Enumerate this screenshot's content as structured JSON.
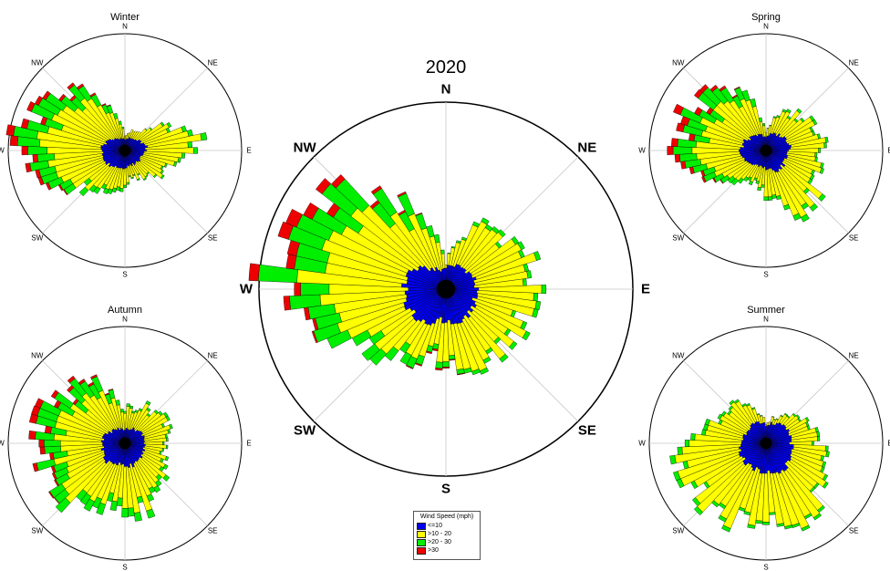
{
  "colors": {
    "calm": "#0000ee",
    "mid": "#ffff00",
    "high": "#00ee00",
    "extreme": "#ee0000",
    "outline": "#000000",
    "grid": "#c8c8c8"
  },
  "legend": {
    "title": "Wind Speed (mph)",
    "items": [
      {
        "label": "<=10",
        "color": "#0000ee"
      },
      {
        "label": ">10 - 20",
        "color": "#ffff00"
      },
      {
        "label": ">20 - 30",
        "color": "#00ee00"
      },
      {
        "label": ">30",
        "color": "#ee0000"
      }
    ]
  },
  "chart_data": [
    {
      "type": "windrose",
      "title": "2020",
      "directions": [
        "N",
        "NE",
        "E",
        "SE",
        "S",
        "SW",
        "W",
        "NW"
      ],
      "bin_labels": [
        "<=10",
        ">10 - 20",
        ">20 - 30",
        ">30"
      ],
      "rmax": 100,
      "petal_count": 72,
      "profile": [
        {
          "angle": 0,
          "calm": 12,
          "mid": 2,
          "high": 0,
          "extreme": 0
        },
        {
          "angle": 30,
          "calm": 14,
          "mid": 24,
          "high": 2,
          "extreme": 0
        },
        {
          "angle": 70,
          "calm": 16,
          "mid": 30,
          "high": 2,
          "extreme": 0
        },
        {
          "angle": 100,
          "calm": 16,
          "mid": 28,
          "high": 2,
          "extreme": 0
        },
        {
          "angle": 140,
          "calm": 18,
          "mid": 24,
          "high": 2,
          "extreme": 0
        },
        {
          "angle": 160,
          "calm": 20,
          "mid": 28,
          "high": 2,
          "extreme": 0
        },
        {
          "angle": 190,
          "calm": 16,
          "mid": 16,
          "high": 3,
          "extreme": 1
        },
        {
          "angle": 215,
          "calm": 22,
          "mid": 18,
          "high": 6,
          "extreme": 0
        },
        {
          "angle": 245,
          "calm": 22,
          "mid": 28,
          "high": 10,
          "extreme": 0
        },
        {
          "angle": 270,
          "calm": 22,
          "mid": 50,
          "high": 18,
          "extreme": 4
        },
        {
          "angle": 295,
          "calm": 22,
          "mid": 44,
          "high": 18,
          "extreme": 6
        },
        {
          "angle": 320,
          "calm": 14,
          "mid": 36,
          "high": 16,
          "extreme": 2
        },
        {
          "angle": 345,
          "calm": 10,
          "mid": 20,
          "high": 6,
          "extreme": 0
        }
      ]
    },
    {
      "type": "windrose",
      "title": "Winter",
      "directions": [
        "N",
        "NE",
        "E",
        "SE",
        "S",
        "SW",
        "W",
        "NW"
      ],
      "bin_labels": [
        "<=10",
        ">10 - 20",
        ">20 - 30",
        ">30"
      ],
      "rmax": 100,
      "petal_count": 72,
      "profile": [
        {
          "angle": 0,
          "calm": 10,
          "mid": 4,
          "high": 0,
          "extreme": 0
        },
        {
          "angle": 40,
          "calm": 12,
          "mid": 8,
          "high": 0,
          "extreme": 0
        },
        {
          "angle": 80,
          "calm": 18,
          "mid": 40,
          "high": 4,
          "extreme": 0
        },
        {
          "angle": 100,
          "calm": 16,
          "mid": 30,
          "high": 2,
          "extreme": 0
        },
        {
          "angle": 140,
          "calm": 14,
          "mid": 14,
          "high": 1,
          "extreme": 0
        },
        {
          "angle": 170,
          "calm": 14,
          "mid": 10,
          "high": 1,
          "extreme": 0
        },
        {
          "angle": 200,
          "calm": 16,
          "mid": 20,
          "high": 4,
          "extreme": 0
        },
        {
          "angle": 230,
          "calm": 18,
          "mid": 24,
          "high": 6,
          "extreme": 0
        },
        {
          "angle": 260,
          "calm": 20,
          "mid": 48,
          "high": 16,
          "extreme": 4
        },
        {
          "angle": 275,
          "calm": 20,
          "mid": 50,
          "high": 18,
          "extreme": 6
        },
        {
          "angle": 300,
          "calm": 16,
          "mid": 42,
          "high": 16,
          "extreme": 3
        },
        {
          "angle": 325,
          "calm": 12,
          "mid": 38,
          "high": 12,
          "extreme": 2
        },
        {
          "angle": 345,
          "calm": 10,
          "mid": 16,
          "high": 4,
          "extreme": 0
        }
      ]
    },
    {
      "type": "windrose",
      "title": "Spring",
      "directions": [
        "N",
        "NE",
        "E",
        "SE",
        "S",
        "SW",
        "W",
        "NW"
      ],
      "bin_labels": [
        "<=10",
        ">10 - 20",
        ">20 - 30",
        ">30"
      ],
      "rmax": 100,
      "petal_count": 72,
      "profile": [
        {
          "angle": 0,
          "calm": 12,
          "mid": 4,
          "high": 0,
          "extreme": 0
        },
        {
          "angle": 30,
          "calm": 16,
          "mid": 20,
          "high": 2,
          "extreme": 0
        },
        {
          "angle": 80,
          "calm": 22,
          "mid": 30,
          "high": 2,
          "extreme": 0
        },
        {
          "angle": 110,
          "calm": 18,
          "mid": 28,
          "high": 2,
          "extreme": 0
        },
        {
          "angle": 150,
          "calm": 20,
          "mid": 40,
          "high": 4,
          "extreme": 0
        },
        {
          "angle": 170,
          "calm": 16,
          "mid": 24,
          "high": 3,
          "extreme": 0
        },
        {
          "angle": 200,
          "calm": 14,
          "mid": 12,
          "high": 2,
          "extreme": 0
        },
        {
          "angle": 230,
          "calm": 18,
          "mid": 20,
          "high": 6,
          "extreme": 0
        },
        {
          "angle": 265,
          "calm": 22,
          "mid": 36,
          "high": 14,
          "extreme": 4
        },
        {
          "angle": 290,
          "calm": 20,
          "mid": 34,
          "high": 16,
          "extreme": 6
        },
        {
          "angle": 315,
          "calm": 16,
          "mid": 34,
          "high": 14,
          "extreme": 3
        },
        {
          "angle": 340,
          "calm": 14,
          "mid": 28,
          "high": 8,
          "extreme": 0
        }
      ]
    },
    {
      "type": "windrose",
      "title": "Autumn",
      "directions": [
        "N",
        "NE",
        "E",
        "SE",
        "S",
        "SW",
        "W",
        "NW"
      ],
      "bin_labels": [
        "<=10",
        ">10 - 20",
        ">20 - 30",
        ">30"
      ],
      "rmax": 100,
      "petal_count": 72,
      "profile": [
        {
          "angle": 0,
          "calm": 12,
          "mid": 16,
          "high": 2,
          "extreme": 0
        },
        {
          "angle": 30,
          "calm": 14,
          "mid": 20,
          "high": 2,
          "extreme": 0
        },
        {
          "angle": 70,
          "calm": 18,
          "mid": 24,
          "high": 2,
          "extreme": 0
        },
        {
          "angle": 100,
          "calm": 16,
          "mid": 14,
          "high": 1,
          "extreme": 0
        },
        {
          "angle": 140,
          "calm": 18,
          "mid": 24,
          "high": 4,
          "extreme": 0
        },
        {
          "angle": 165,
          "calm": 20,
          "mid": 36,
          "high": 6,
          "extreme": 0
        },
        {
          "angle": 195,
          "calm": 18,
          "mid": 30,
          "high": 8,
          "extreme": 0
        },
        {
          "angle": 225,
          "calm": 22,
          "mid": 40,
          "high": 10,
          "extreme": 0
        },
        {
          "angle": 255,
          "calm": 20,
          "mid": 38,
          "high": 14,
          "extreme": 3
        },
        {
          "angle": 280,
          "calm": 20,
          "mid": 40,
          "high": 16,
          "extreme": 6
        },
        {
          "angle": 305,
          "calm": 16,
          "mid": 34,
          "high": 14,
          "extreme": 3
        },
        {
          "angle": 330,
          "calm": 14,
          "mid": 34,
          "high": 14,
          "extreme": 2
        },
        {
          "angle": 350,
          "calm": 12,
          "mid": 20,
          "high": 4,
          "extreme": 0
        }
      ]
    },
    {
      "type": "windrose",
      "title": "Summer",
      "directions": [
        "N",
        "NE",
        "E",
        "SE",
        "S",
        "SW",
        "W",
        "NW"
      ],
      "bin_labels": [
        "<=10",
        ">10 - 20",
        ">20 - 30",
        ">30"
      ],
      "rmax": 100,
      "petal_count": 72,
      "profile": [
        {
          "angle": 0,
          "calm": 16,
          "mid": 2,
          "high": 0,
          "extreme": 0
        },
        {
          "angle": 40,
          "calm": 20,
          "mid": 8,
          "high": 1,
          "extreme": 0
        },
        {
          "angle": 80,
          "calm": 22,
          "mid": 22,
          "high": 2,
          "extreme": 0
        },
        {
          "angle": 110,
          "calm": 22,
          "mid": 26,
          "high": 2,
          "extreme": 0
        },
        {
          "angle": 140,
          "calm": 26,
          "mid": 38,
          "high": 2,
          "extreme": 0
        },
        {
          "angle": 160,
          "calm": 26,
          "mid": 46,
          "high": 2,
          "extreme": 0
        },
        {
          "angle": 185,
          "calm": 24,
          "mid": 36,
          "high": 2,
          "extreme": 0
        },
        {
          "angle": 210,
          "calm": 24,
          "mid": 50,
          "high": 3,
          "extreme": 0
        },
        {
          "angle": 235,
          "calm": 24,
          "mid": 46,
          "high": 3,
          "extreme": 0
        },
        {
          "angle": 265,
          "calm": 22,
          "mid": 52,
          "high": 4,
          "extreme": 0
        },
        {
          "angle": 285,
          "calm": 20,
          "mid": 30,
          "high": 3,
          "extreme": 0
        },
        {
          "angle": 315,
          "calm": 20,
          "mid": 26,
          "high": 2,
          "extreme": 0
        },
        {
          "angle": 340,
          "calm": 18,
          "mid": 10,
          "high": 1,
          "extreme": 0
        }
      ]
    }
  ]
}
